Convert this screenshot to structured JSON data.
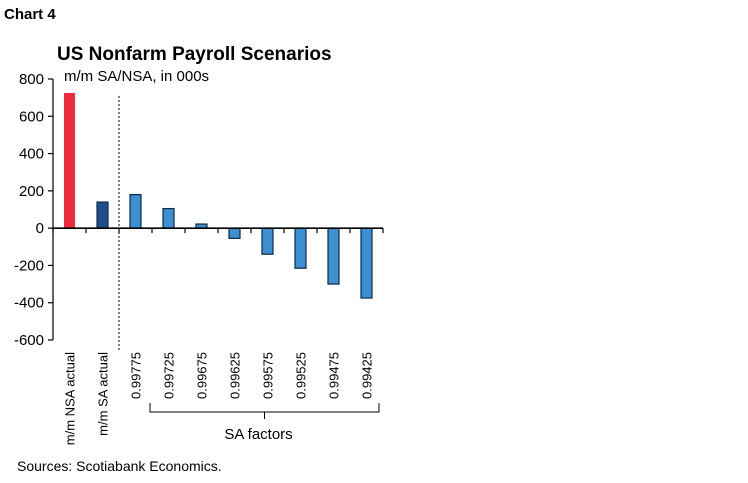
{
  "header": {
    "chart_label": "Chart 4",
    "title": "US Nonfarm Payroll Scenarios",
    "subtitle": "m/m SA/NSA, in 000s"
  },
  "footer": {
    "source": "Sources: Scotiabank Economics."
  },
  "chart_data": {
    "type": "bar",
    "title": "US Nonfarm Payroll Scenarios",
    "subtitle": "m/m SA/NSA, in 000s",
    "categories": [
      "m/m NSA actual",
      "m/m SA actual",
      "0.99775",
      "0.99725",
      "0.99675",
      "0.99625",
      "0.99575",
      "0.99525",
      "0.99475",
      "0.99425"
    ],
    "values": [
      725,
      140,
      180,
      105,
      22,
      -55,
      -140,
      -215,
      -300,
      -375
    ],
    "bar_colors": [
      "#ef2b3b",
      "#1f4e8a",
      "#3d8fd0",
      "#3d8fd0",
      "#3d8fd0",
      "#3d8fd0",
      "#3d8fd0",
      "#3d8fd0",
      "#3d8fd0",
      "#3d8fd0"
    ],
    "ylim": [
      -600,
      800
    ],
    "yticks": [
      -600,
      -400,
      -200,
      0,
      200,
      400,
      600,
      800
    ],
    "group_label": "SA factors",
    "grid": false,
    "legend": "none"
  }
}
